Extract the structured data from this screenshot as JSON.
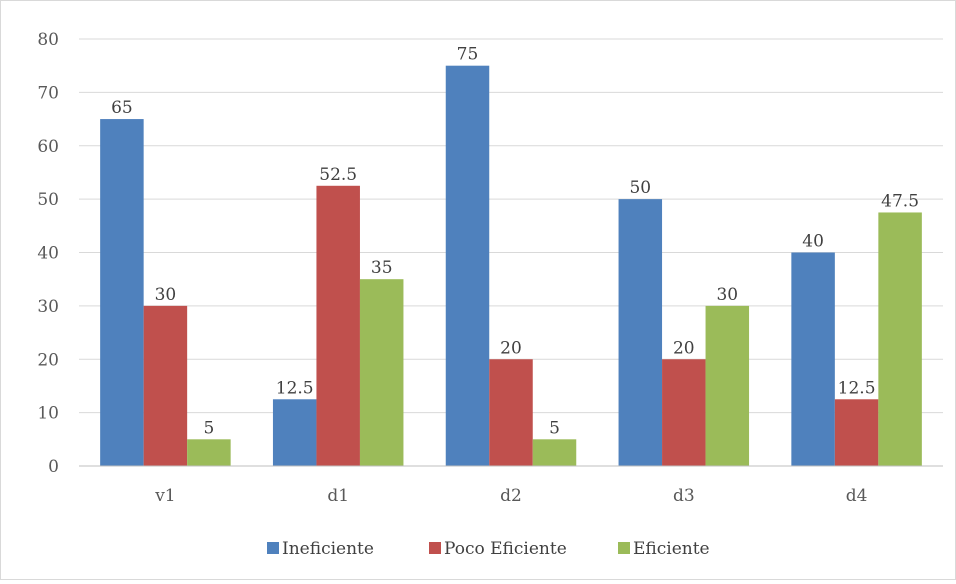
{
  "chart_data": {
    "type": "bar",
    "categories": [
      "v1",
      "d1",
      "d2",
      "d3",
      "d4"
    ],
    "series": [
      {
        "name": "Ineficiente",
        "color": "#4f81bd",
        "values": [
          65,
          12.5,
          75,
          50,
          40
        ]
      },
      {
        "name": "Poco Eficiente",
        "color": "#c0504d",
        "values": [
          30,
          52.5,
          20,
          20,
          12.5
        ]
      },
      {
        "name": "Eficiente",
        "color": "#9bbb59",
        "values": [
          5,
          35,
          5,
          30,
          47.5
        ]
      }
    ],
    "ylim": [
      0,
      80
    ],
    "yticks": [
      0,
      10,
      20,
      30,
      40,
      50,
      60,
      70,
      80
    ],
    "grid": true,
    "legend_position": "bottom",
    "title": "",
    "xlabel": "",
    "ylabel": ""
  }
}
